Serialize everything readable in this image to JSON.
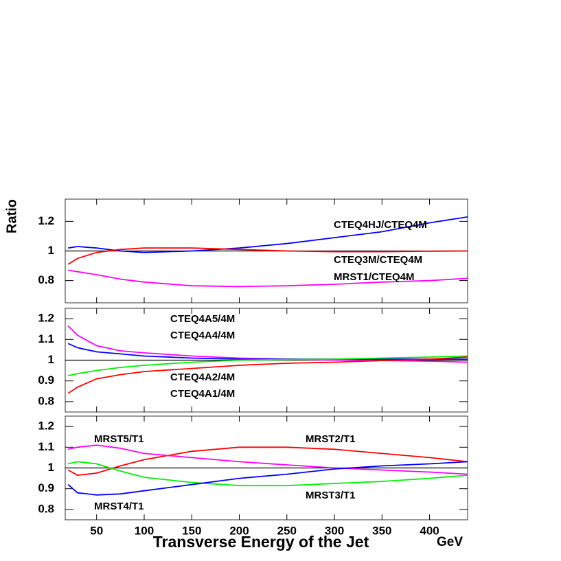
{
  "chart_data": [
    {
      "type": "line",
      "ylabel": "Ratio",
      "xlim": [
        17,
        440
      ],
      "xticks": [
        50,
        100,
        150,
        200,
        250,
        300,
        350,
        400
      ],
      "ylim": [
        0.65,
        1.35
      ],
      "yticks": [
        0.8,
        1,
        1.2
      ],
      "reference": 1,
      "x": [
        20,
        30,
        50,
        75,
        100,
        150,
        200,
        250,
        300,
        350,
        400,
        440
      ],
      "series": [
        {
          "name": "CTEQ4HJ/CTEQ4M",
          "color": "#0000ff",
          "values": [
            1.02,
            1.03,
            1.02,
            1.0,
            0.99,
            1.0,
            1.02,
            1.05,
            1.09,
            1.13,
            1.19,
            1.23
          ]
        },
        {
          "name": "CTEQ3M/CTEQ4M",
          "color": "#ff0000",
          "values": [
            0.91,
            0.95,
            0.99,
            1.01,
            1.02,
            1.02,
            1.01,
            1.0,
            0.995,
            0.995,
            0.998,
            1.0
          ]
        },
        {
          "name": "MRST1/CTEQ4M",
          "color": "#ff00ff",
          "values": [
            0.87,
            0.86,
            0.84,
            0.81,
            0.79,
            0.765,
            0.76,
            0.765,
            0.775,
            0.79,
            0.8,
            0.815
          ]
        }
      ]
    },
    {
      "type": "line",
      "xlim": [
        17,
        440
      ],
      "xticks": [
        50,
        100,
        150,
        200,
        250,
        300,
        350,
        400
      ],
      "ylim": [
        0.75,
        1.25
      ],
      "yticks": [
        0.8,
        0.9,
        1,
        1.1,
        1.2
      ],
      "reference": 1,
      "x": [
        20,
        30,
        50,
        75,
        100,
        150,
        200,
        250,
        300,
        350,
        400,
        440
      ],
      "series": [
        {
          "name": "CTEQ4A5/4M",
          "color": "#ff00ff",
          "values": [
            1.165,
            1.12,
            1.07,
            1.045,
            1.035,
            1.02,
            1.01,
            1.005,
            1.0,
            0.998,
            0.995,
            0.99
          ]
        },
        {
          "name": "CTEQ4A4/4M",
          "color": "#0000ff",
          "values": [
            1.08,
            1.06,
            1.04,
            1.03,
            1.02,
            1.01,
            1.005,
            1.005,
            1.005,
            1.005,
            1.005,
            1.005
          ]
        },
        {
          "name": "CTEQ4A2/4M",
          "color": "#00ee00",
          "values": [
            0.925,
            0.935,
            0.95,
            0.965,
            0.975,
            0.99,
            1.0,
            1.003,
            1.005,
            1.01,
            1.015,
            1.02
          ]
        },
        {
          "name": "CTEQ4A1/4M",
          "color": "#ff0000",
          "values": [
            0.84,
            0.87,
            0.91,
            0.93,
            0.945,
            0.96,
            0.975,
            0.985,
            0.99,
            0.998,
            1.005,
            1.015
          ]
        }
      ]
    },
    {
      "type": "line",
      "xlabel": "Transverse Energy of the Jet",
      "xunit": "GeV",
      "xlim": [
        17,
        440
      ],
      "xticks": [
        50,
        100,
        150,
        200,
        250,
        300,
        350,
        400
      ],
      "ylim": [
        0.75,
        1.25
      ],
      "yticks": [
        0.8,
        0.9,
        1,
        1.1,
        1.2
      ],
      "reference": 1,
      "x": [
        20,
        30,
        50,
        75,
        100,
        150,
        200,
        250,
        300,
        350,
        400,
        440
      ],
      "series": [
        {
          "name": "MRST2/T1",
          "color": "#ff0000",
          "values": [
            0.99,
            0.965,
            0.975,
            1.01,
            1.04,
            1.08,
            1.1,
            1.1,
            1.09,
            1.07,
            1.05,
            1.03
          ]
        },
        {
          "name": "MRST5/T1",
          "color": "#ff00ff",
          "values": [
            1.09,
            1.1,
            1.11,
            1.095,
            1.07,
            1.05,
            1.03,
            1.015,
            1.0,
            0.99,
            0.98,
            0.97
          ]
        },
        {
          "name": "MRST3/T1",
          "color": "#00ee00",
          "values": [
            1.02,
            1.03,
            1.02,
            0.985,
            0.955,
            0.93,
            0.915,
            0.915,
            0.925,
            0.935,
            0.95,
            0.965
          ]
        },
        {
          "name": "MRST4/T1",
          "color": "#0000ff",
          "values": [
            0.92,
            0.88,
            0.87,
            0.875,
            0.89,
            0.92,
            0.95,
            0.97,
            0.995,
            1.01,
            1.02,
            1.03
          ]
        }
      ]
    }
  ]
}
